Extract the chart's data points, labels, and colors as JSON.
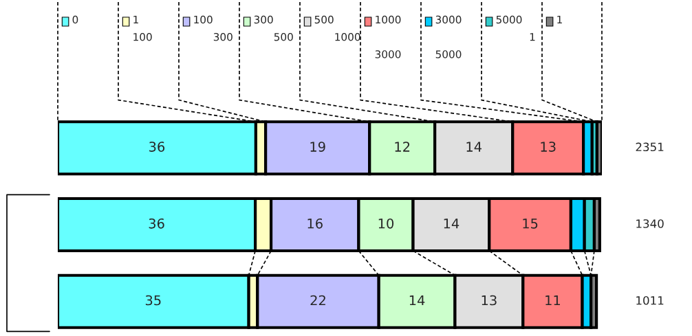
{
  "chart_data": {
    "type": "bar",
    "orientation": "horizontal",
    "stacked": true,
    "categories": [
      null,
      null,
      null
    ],
    "xlim": [
      0,
      100
    ],
    "legend": "top",
    "annotations": [
      "2351",
      "1340",
      "1011"
    ],
    "series": [
      {
        "name": "0",
        "color": "#66ffff",
        "values": [
          36.4,
          36.3,
          35.1
        ],
        "value_labels": [
          "36",
          "36",
          "35"
        ]
      },
      {
        "name": "1\n100",
        "color": "#ffffc0",
        "values": [
          1.8,
          2.9,
          1.6
        ],
        "value_labels": [
          null,
          null,
          null
        ]
      },
      {
        "name": "100\n      300",
        "color": "#c0c0ff",
        "values": [
          19.1,
          16.1,
          22.3
        ],
        "value_labels": [
          "19",
          "16",
          "22"
        ]
      },
      {
        "name": "300\n      500",
        "color": "#ccffcc",
        "values": [
          12.0,
          10.0,
          14.0
        ],
        "value_labels": [
          "12",
          "10",
          "14"
        ]
      },
      {
        "name": "500\n      1000",
        "color": "#e0e0e0",
        "values": [
          14.3,
          14.0,
          12.5
        ],
        "value_labels": [
          "14",
          "14",
          "13"
        ]
      },
      {
        "name": "1000\n\n3000",
        "color": "#ff8080",
        "values": [
          13.0,
          15.0,
          10.9
        ],
        "value_labels": [
          "13",
          "15",
          "11"
        ]
      },
      {
        "name": "3000\n\n5000",
        "color": "#00ccff",
        "values": [
          1.6,
          2.5,
          1.6
        ],
        "value_labels": [
          null,
          null,
          null
        ]
      },
      {
        "name": "5000\n          1",
        "color": "#33cccc",
        "values": [
          0.9,
          1.8,
          null
        ],
        "value_labels": [
          null,
          null,
          null
        ]
      },
      {
        "name": "1",
        "color": "#808080",
        "values": [
          0.9,
          1.0,
          1.0
        ],
        "value_labels": [
          null,
          null,
          null
        ]
      }
    ]
  }
}
